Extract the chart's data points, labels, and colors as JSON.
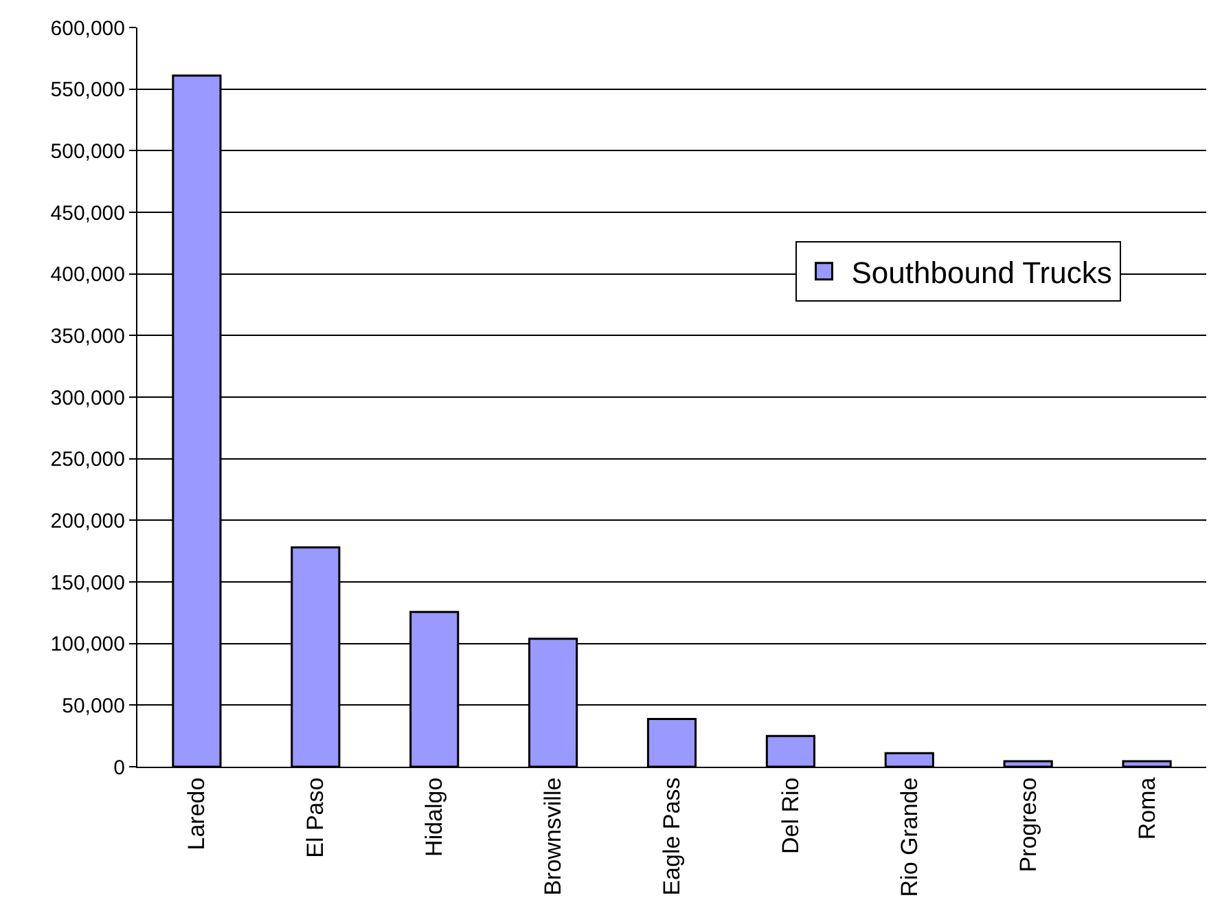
{
  "chart_data": {
    "type": "bar",
    "categories": [
      "Laredo",
      "El Paso",
      "Hidalgo",
      "Brownsville",
      "Eagle Pass",
      "Del Rio",
      "Rio Grande",
      "Progreso",
      "Roma"
    ],
    "series": [
      {
        "name": "Southbound Trucks",
        "color": "#9999ff",
        "values": [
          561000,
          178000,
          125600,
          103800,
          38800,
          25000,
          11000,
          4400,
          4400
        ]
      }
    ],
    "ylim": [
      0,
      600000
    ],
    "yticks": [
      {
        "value": 0,
        "label": "0"
      },
      {
        "value": 50000,
        "label": "50,000"
      },
      {
        "value": 100000,
        "label": "100,000"
      },
      {
        "value": 150000,
        "label": "150,000"
      },
      {
        "value": 200000,
        "label": "200,000"
      },
      {
        "value": 250000,
        "label": "250,000"
      },
      {
        "value": 300000,
        "label": "300,000"
      },
      {
        "value": 350000,
        "label": "350,000"
      },
      {
        "value": 400000,
        "label": "400,000"
      },
      {
        "value": 450000,
        "label": "450,000"
      },
      {
        "value": 500000,
        "label": "500,000"
      },
      {
        "value": 550000,
        "label": "550,000"
      },
      {
        "value": 600000,
        "label": "600,000"
      }
    ],
    "grid": "y",
    "legend": "right"
  }
}
